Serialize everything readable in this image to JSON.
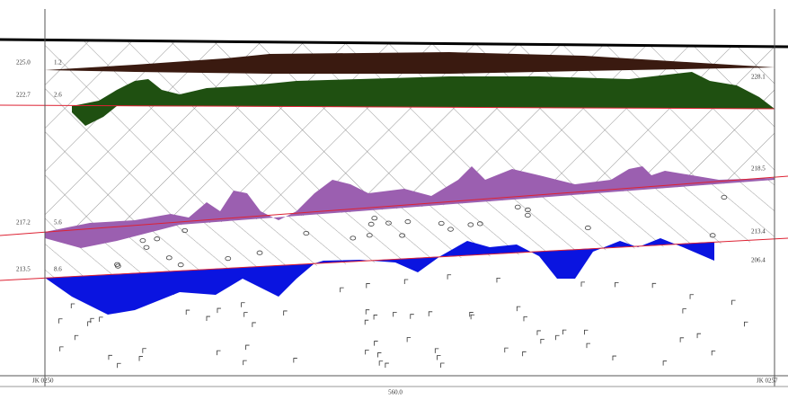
{
  "left_labels": [
    {
      "elevation": "225.0",
      "depth": "1.2"
    },
    {
      "elevation": "222.7",
      "depth": "2.6"
    },
    {
      "elevation": "217.2",
      "depth": "5.6"
    },
    {
      "elevation": "213.5",
      "depth": "8.6"
    }
  ],
  "right_labels": [
    "228.1",
    "218.5",
    "213.4",
    "206.4"
  ],
  "footer": {
    "start": "JK 0250",
    "end": "JK 0257",
    "scale": "560.0"
  }
}
